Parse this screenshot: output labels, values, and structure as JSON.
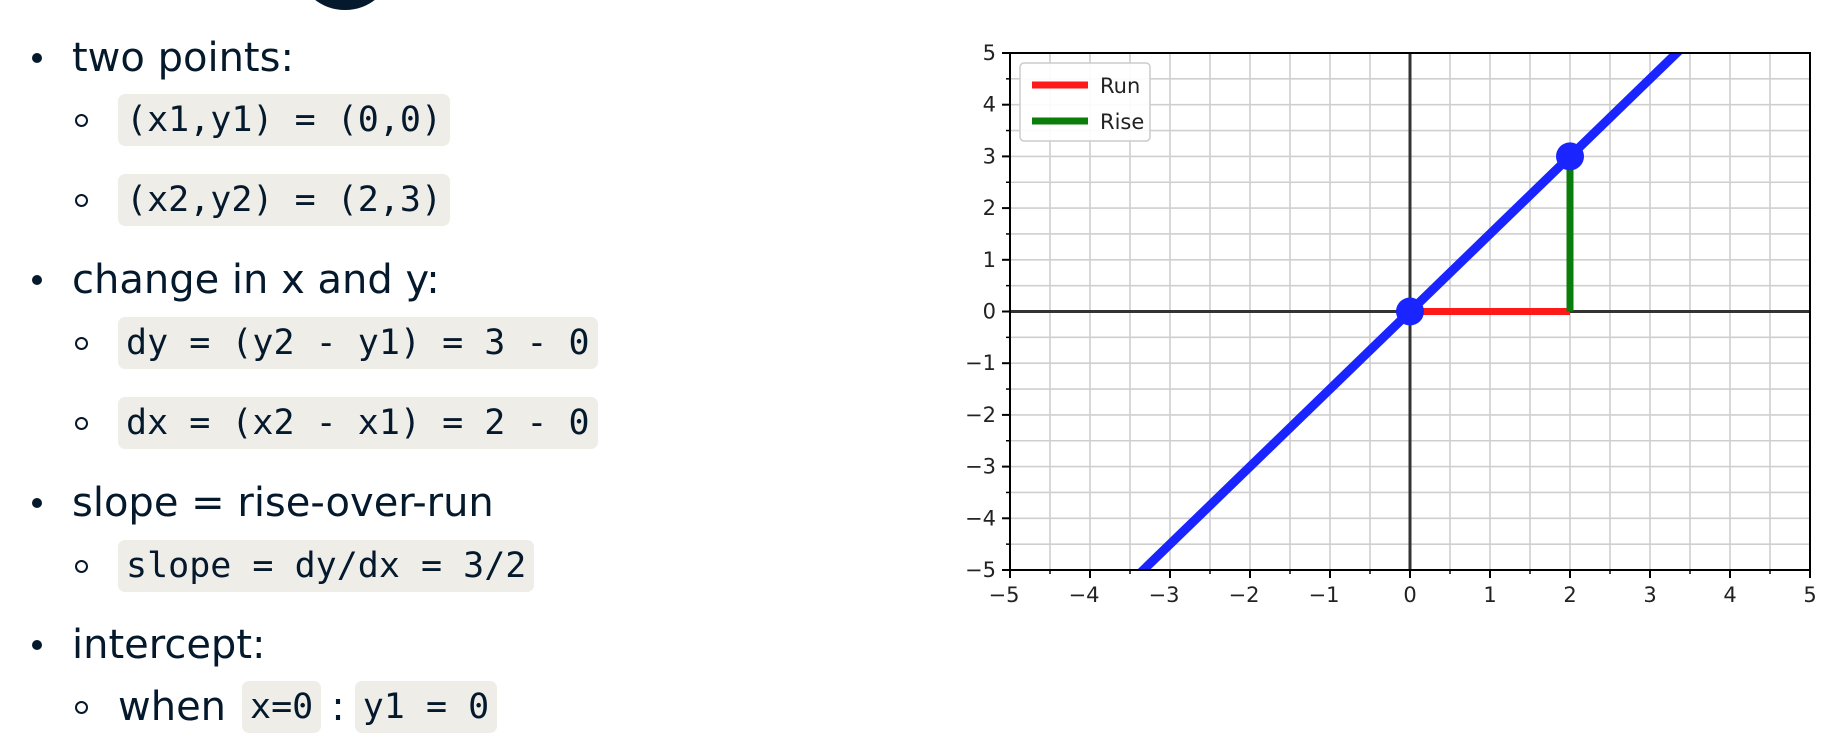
{
  "bullets": {
    "b1": "two points:",
    "b1_s1": "(x1,y1) = (0,0)",
    "b1_s2": "(x2,y2) = (2,3)",
    "b2": "change in x and y:",
    "b2_s1": "dy = (y2 - y1) = 3 - 0",
    "b2_s2": "dx = (x2 - x1) = 2 - 0",
    "b3": "slope = rise-over-run",
    "b3_s1": "slope = dy/dx = 3/2",
    "b4": "intercept:",
    "b4_s1_prefix": "when",
    "b4_s1_code1": "x=0",
    "b4_s1_sep": ":",
    "b4_s1_code2": "y1 = 0"
  },
  "chart_data": {
    "type": "line",
    "xlim": [
      -5,
      5
    ],
    "ylim": [
      -5,
      5
    ],
    "xticks": [
      -5,
      -4,
      -3,
      -2,
      -1,
      0,
      1,
      2,
      3,
      4,
      5
    ],
    "yticks": [
      -5,
      -4,
      -3,
      -2,
      -1,
      0,
      1,
      2,
      3,
      4,
      5
    ],
    "grid": true,
    "legend_position": "top-left",
    "line": {
      "slope": 1.5,
      "intercept": 0,
      "color": "#1a24ff"
    },
    "points": [
      {
        "x": 0,
        "y": 0
      },
      {
        "x": 2,
        "y": 3
      }
    ],
    "series": [
      {
        "name": "Run",
        "color": "#ff1a1a",
        "x": [
          0,
          2
        ],
        "y": [
          0,
          0
        ]
      },
      {
        "name": "Rise",
        "color": "#0b7d0b",
        "x": [
          2,
          2
        ],
        "y": [
          0,
          3
        ]
      }
    ]
  }
}
